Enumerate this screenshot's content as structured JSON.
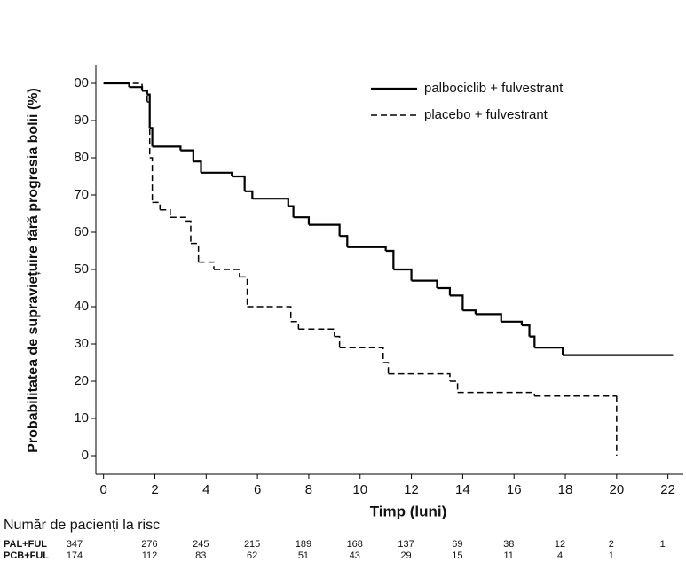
{
  "chart_data": {
    "type": "step",
    "y_label": "Probabilitatea de supraviețuire fără progresia bolii (%)",
    "x_label": "Timp (luni)",
    "xlim": [
      -0.3,
      22.6
    ],
    "ylim": [
      -5,
      105
    ],
    "xticks": [
      0,
      2,
      4,
      6,
      8,
      10,
      12,
      14,
      16,
      18,
      20,
      22
    ],
    "yticks": [
      0,
      10,
      20,
      30,
      40,
      50,
      60,
      70,
      80,
      90,
      {
        "value": 100,
        "label": "00"
      }
    ],
    "legend": "top-right",
    "series": [
      {
        "name": "palbociclib + fulvestrant",
        "color": "#000000",
        "dash": "solid",
        "x": [
          0,
          1,
          1.5,
          1.7,
          1.8,
          1.9,
          3,
          3.5,
          3.8,
          5,
          5.5,
          5.8,
          7.2,
          7.4,
          8,
          9.2,
          9.5,
          11,
          11.3,
          12,
          13,
          13.5,
          14,
          14.5,
          15.5,
          16.3,
          16.6,
          16.8,
          17.9,
          22.2
        ],
        "values": [
          100,
          99,
          98,
          97,
          88,
          83,
          82,
          79,
          76,
          75,
          71,
          69,
          67,
          64,
          62,
          59,
          56,
          55,
          50,
          47,
          45,
          43,
          39,
          38,
          36,
          35,
          32,
          29,
          27,
          27
        ]
      },
      {
        "name": "placebo + fulvestrant",
        "color": "#000000",
        "dash": "dashed",
        "x": [
          0,
          1.5,
          1.7,
          1.8,
          1.9,
          2.2,
          2.6,
          3.2,
          3.4,
          3.7,
          4.3,
          5.3,
          5.6,
          7.3,
          7.6,
          9,
          9.2,
          10.9,
          11.1,
          13.5,
          13.8,
          16.8,
          20,
          20
        ],
        "values": [
          100,
          98,
          95,
          80,
          68,
          66,
          64,
          63,
          57,
          52,
          50,
          48,
          40,
          36,
          34,
          32,
          29,
          25,
          22,
          20,
          17,
          16,
          16,
          0
        ]
      }
    ],
    "risk_table": {
      "title": "Număr de pacienți la risc",
      "rows": [
        {
          "label": "PAL+FUL",
          "values": [
            347,
            276,
            245,
            215,
            189,
            168,
            137,
            69,
            38,
            12,
            2,
            1
          ]
        },
        {
          "label": "PCB+FUL",
          "values": [
            174,
            112,
            83,
            62,
            51,
            43,
            29,
            15,
            11,
            4,
            1
          ]
        }
      ]
    }
  }
}
